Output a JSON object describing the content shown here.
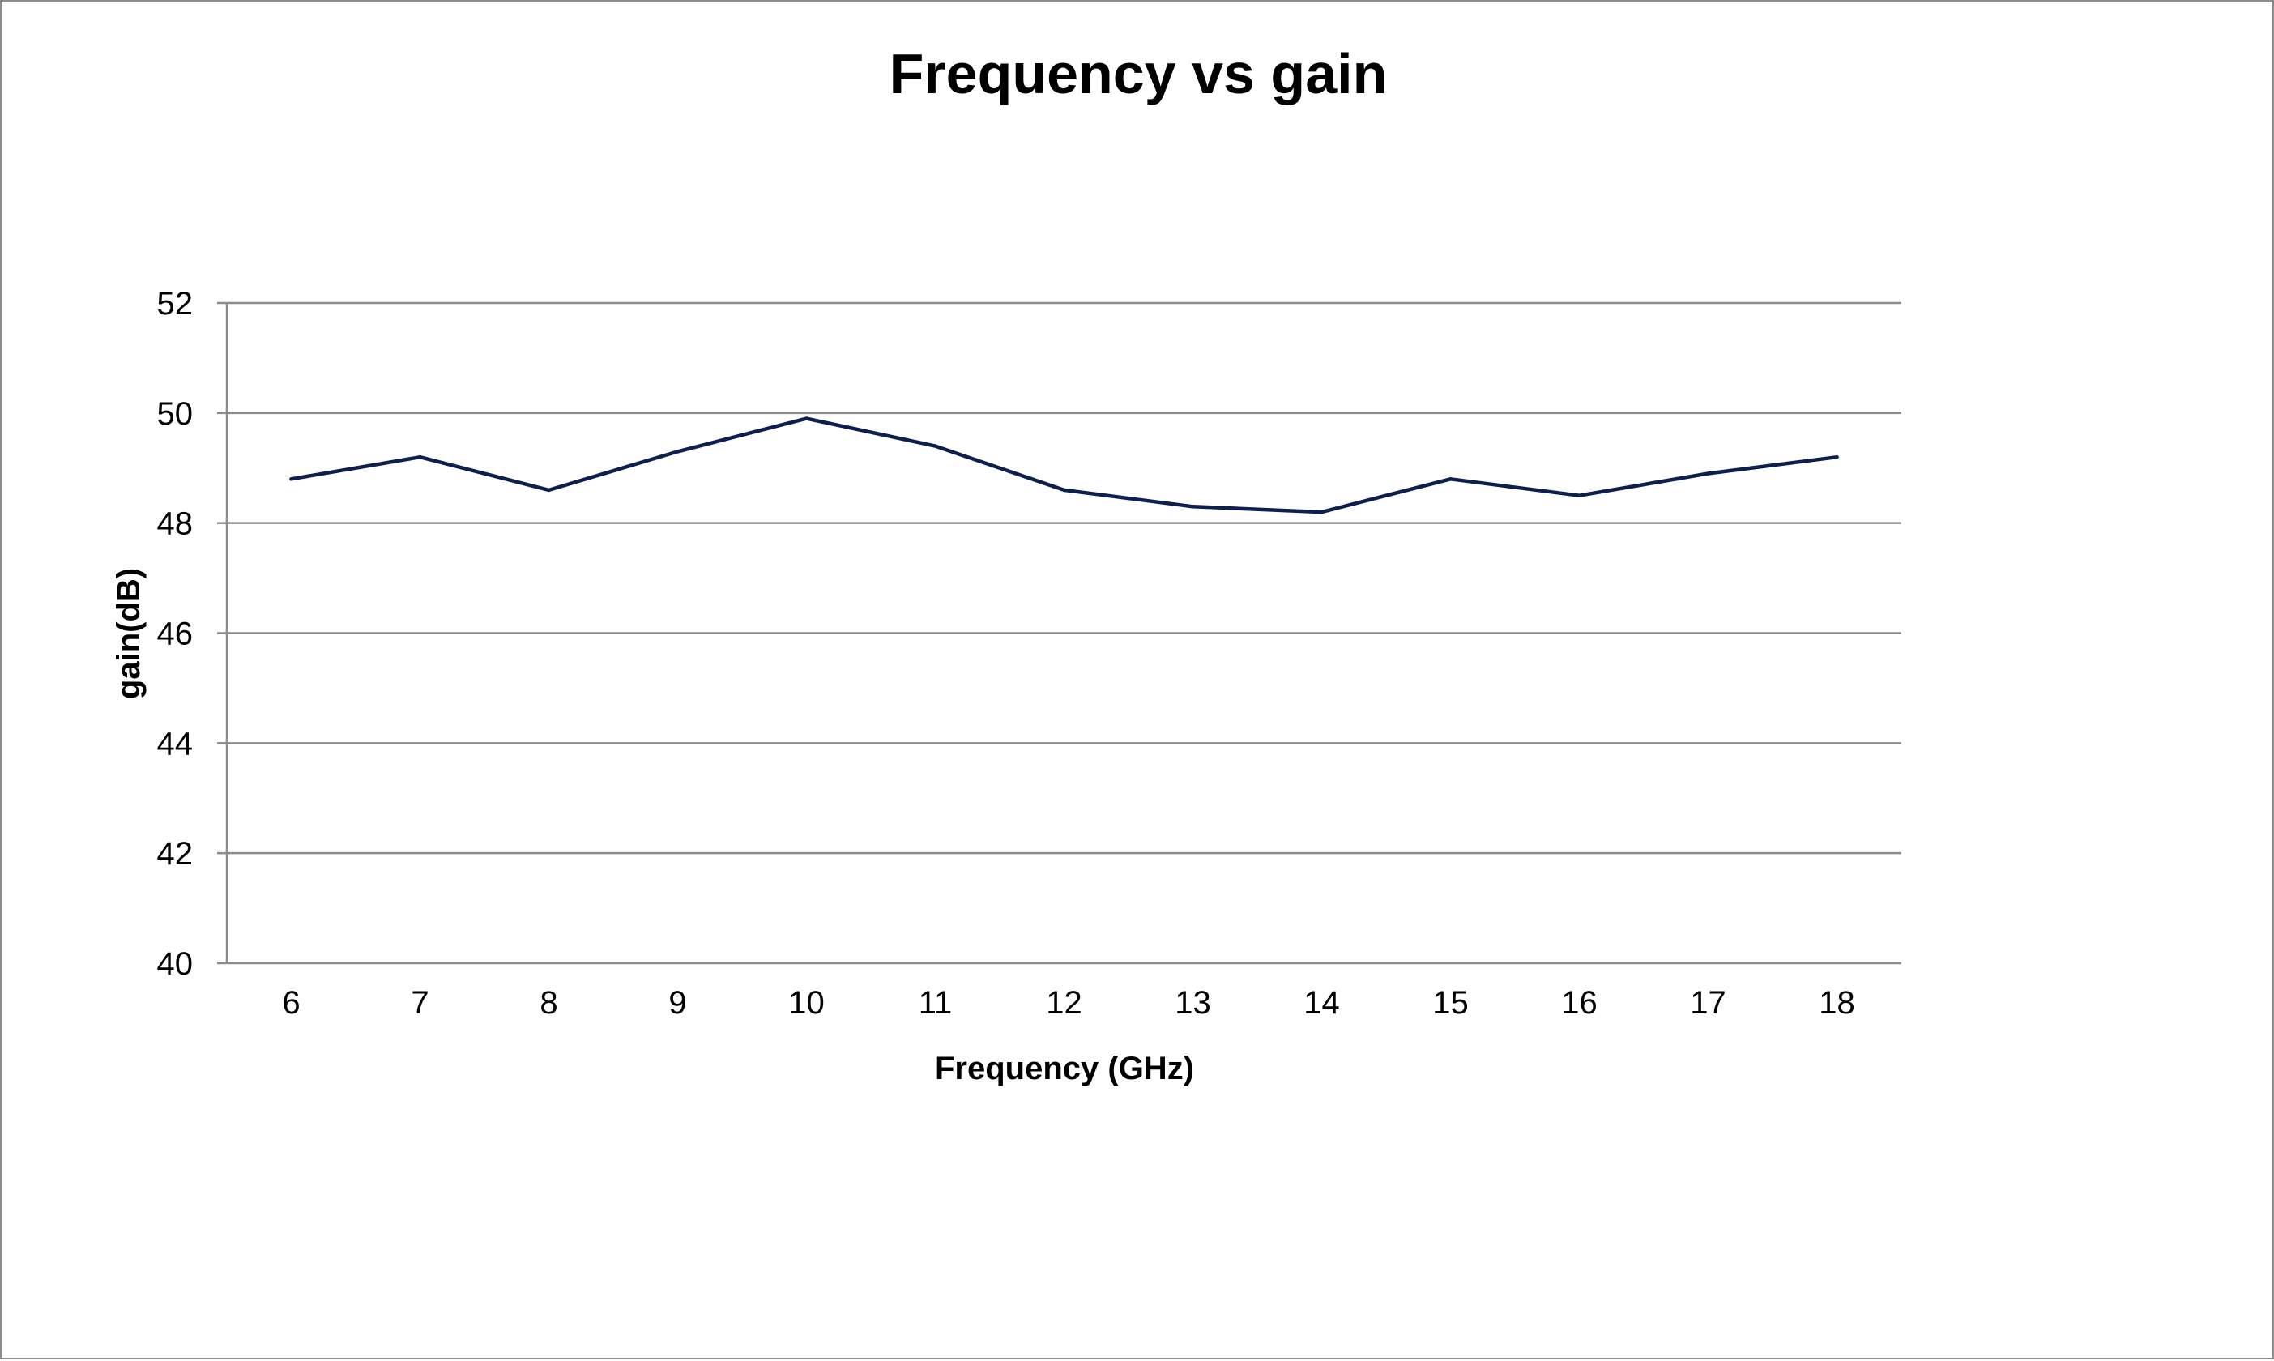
{
  "chart_data": {
    "type": "line",
    "title": "Frequency vs gain",
    "xlabel": "Frequency (GHz)",
    "ylabel": "gain(dB)",
    "x": [
      6,
      7,
      8,
      9,
      10,
      11,
      12,
      13,
      14,
      15,
      16,
      17,
      18
    ],
    "series": [
      {
        "values": [
          48.8,
          49.2,
          48.6,
          49.3,
          49.9,
          49.4,
          48.6,
          48.3,
          48.2,
          48.8,
          48.5,
          48.9,
          49.2
        ],
        "color": "#0d1f4d"
      }
    ],
    "yticks": [
      40,
      42,
      44,
      46,
      48,
      50,
      52
    ],
    "ylim": [
      40,
      52
    ],
    "grid": true,
    "legend": "none"
  }
}
